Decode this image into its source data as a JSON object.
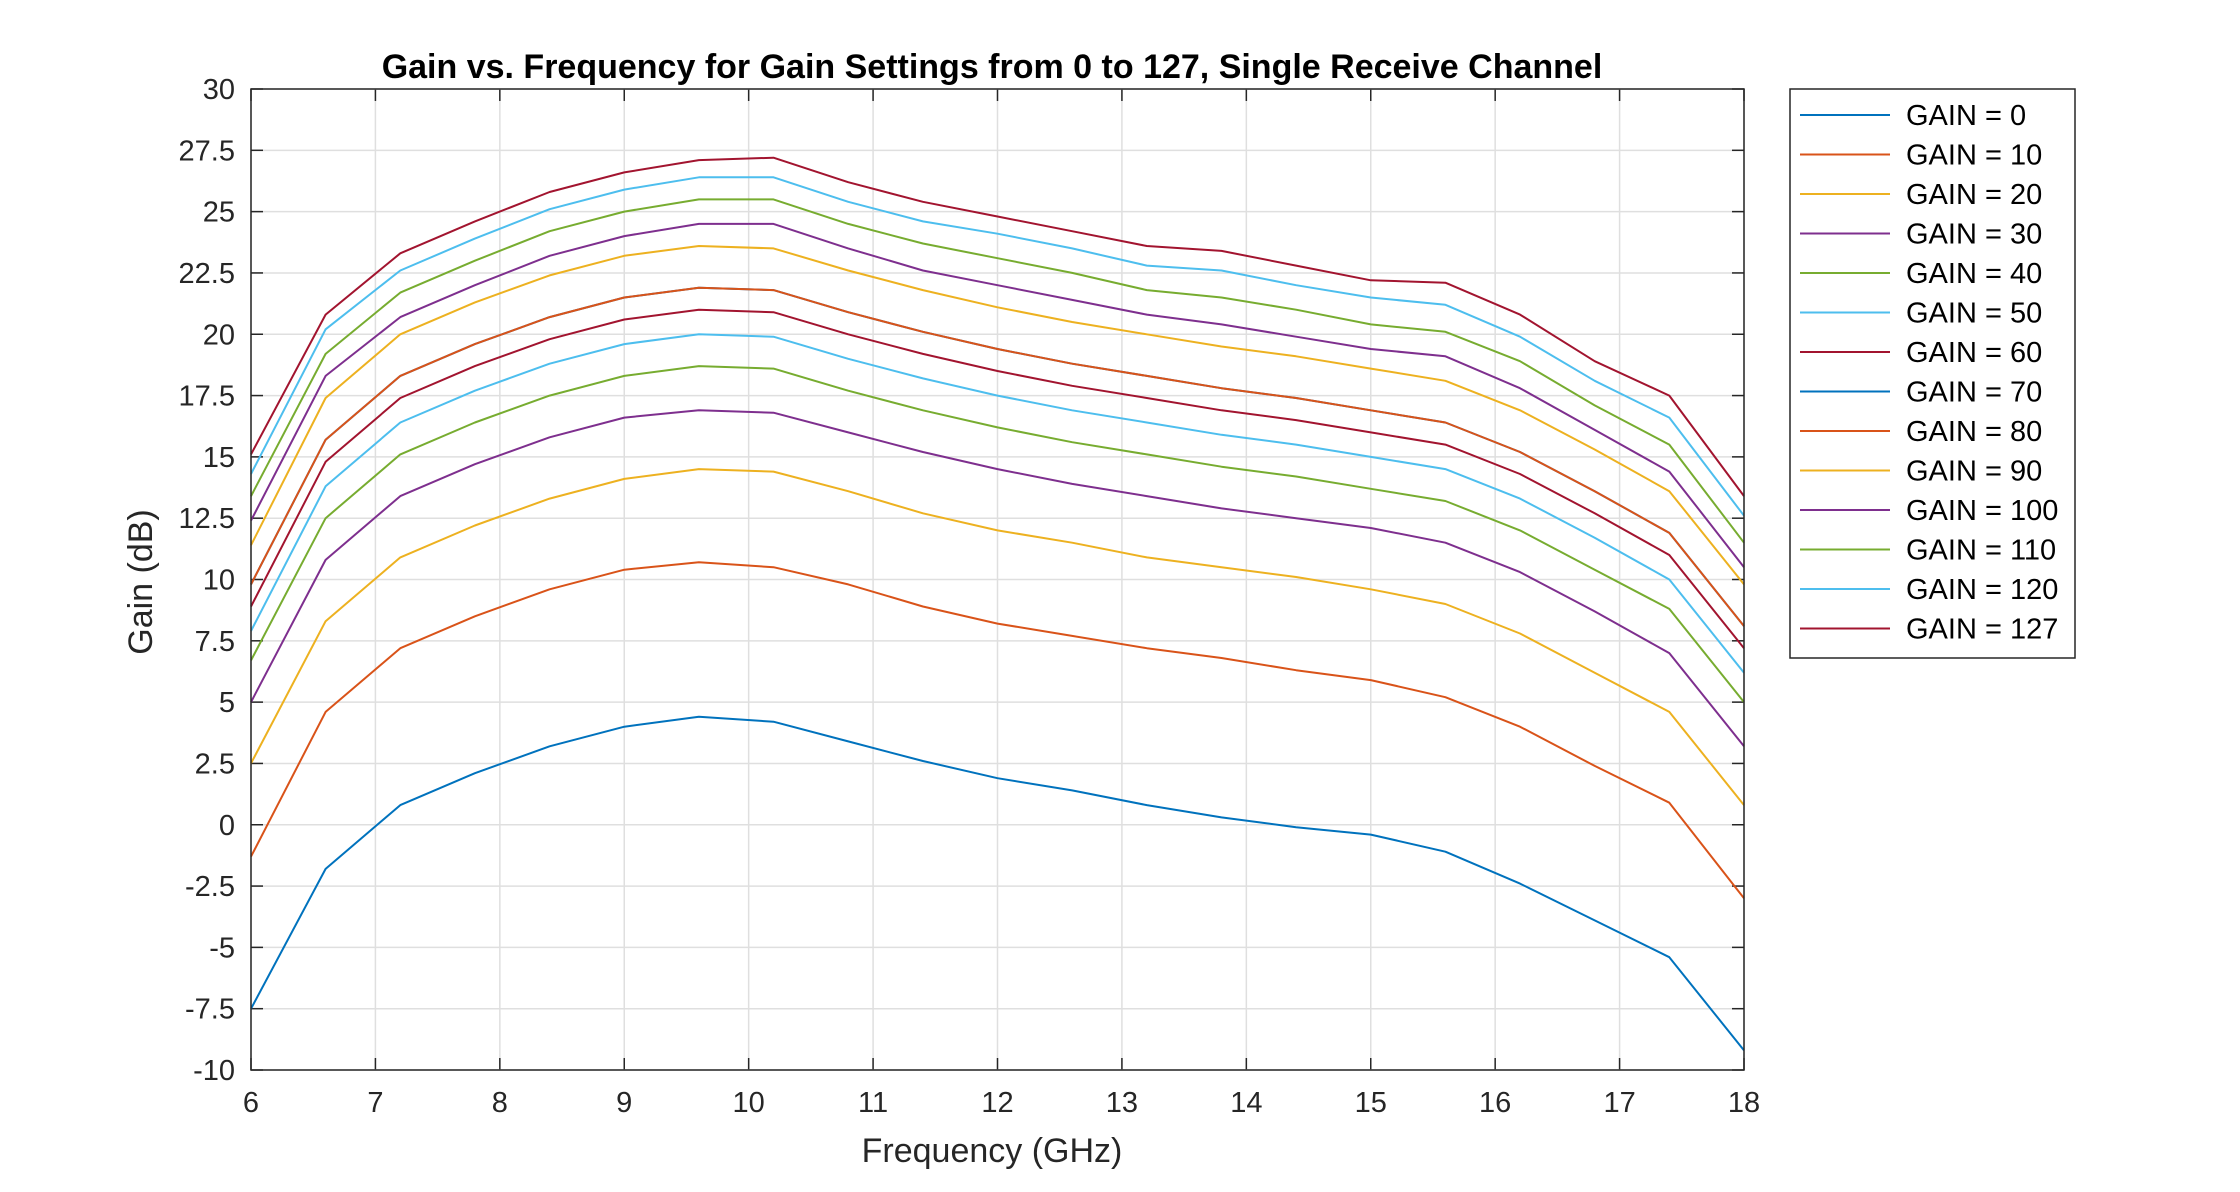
{
  "chart_data": {
    "type": "line",
    "title": "Gain vs. Frequency for Gain Settings from 0 to 127, Single Receive Channel",
    "xlabel": "Frequency (GHz)",
    "ylabel": "Gain (dB)",
    "xlim": [
      6,
      18
    ],
    "ylim": [
      -10,
      30
    ],
    "xticks": [
      "6",
      "7",
      "8",
      "9",
      "10",
      "11",
      "12",
      "13",
      "14",
      "15",
      "16",
      "17",
      "18"
    ],
    "yticks": [
      "-10",
      "-7.5",
      "-5",
      "-2.5",
      "0",
      "2.5",
      "5",
      "7.5",
      "10",
      "12.5",
      "15",
      "17.5",
      "20",
      "22.5",
      "25",
      "27.5",
      "30"
    ],
    "grid": true,
    "legend_position": "outside-top-right",
    "x": [
      6,
      6.6,
      7.2,
      7.8,
      8.4,
      9,
      9.6,
      10.2,
      10.8,
      11.4,
      12,
      12.6,
      13.2,
      13.8,
      14.4,
      15,
      15.6,
      16.2,
      16.8,
      17.4,
      18
    ],
    "series": [
      {
        "name": "GAIN = 0",
        "color": "#0072BD",
        "values": [
          -7.5,
          -1.8,
          0.8,
          2.1,
          3.2,
          4.0,
          4.4,
          4.2,
          3.4,
          2.6,
          1.9,
          1.4,
          0.8,
          0.3,
          -0.1,
          -0.4,
          -1.1,
          -2.4,
          -3.9,
          -5.4,
          -9.2
        ]
      },
      {
        "name": "GAIN = 10",
        "color": "#D95319",
        "values": [
          -1.3,
          4.6,
          7.2,
          8.5,
          9.6,
          10.4,
          10.7,
          10.5,
          9.8,
          8.9,
          8.2,
          7.7,
          7.2,
          6.8,
          6.3,
          5.9,
          5.2,
          4.0,
          2.4,
          0.9,
          -3.0
        ]
      },
      {
        "name": "GAIN = 20",
        "color": "#EDB120",
        "values": [
          2.5,
          8.3,
          10.9,
          12.2,
          13.3,
          14.1,
          14.5,
          14.4,
          13.6,
          12.7,
          12.0,
          11.5,
          10.9,
          10.5,
          10.1,
          9.6,
          9.0,
          7.8,
          6.2,
          4.6,
          0.8
        ]
      },
      {
        "name": "GAIN = 30",
        "color": "#7E2F8E",
        "values": [
          5.0,
          10.8,
          13.4,
          14.7,
          15.8,
          16.6,
          16.9,
          16.8,
          16.0,
          15.2,
          14.5,
          13.9,
          13.4,
          12.9,
          12.5,
          12.1,
          11.5,
          10.3,
          8.7,
          7.0,
          3.2
        ]
      },
      {
        "name": "GAIN = 40",
        "color": "#77AC30",
        "values": [
          6.7,
          12.5,
          15.1,
          16.4,
          17.5,
          18.3,
          18.7,
          18.6,
          17.7,
          16.9,
          16.2,
          15.6,
          15.1,
          14.6,
          14.2,
          13.7,
          13.2,
          12.0,
          10.4,
          8.8,
          5.0
        ]
      },
      {
        "name": "GAIN = 50",
        "color": "#4DBEEE",
        "values": [
          7.9,
          13.8,
          16.4,
          17.7,
          18.8,
          19.6,
          20.0,
          19.9,
          19.0,
          18.2,
          17.5,
          16.9,
          16.4,
          15.9,
          15.5,
          15.0,
          14.5,
          13.3,
          11.7,
          10.0,
          6.2
        ]
      },
      {
        "name": "GAIN = 60",
        "color": "#A2142F",
        "values": [
          8.9,
          14.8,
          17.4,
          18.7,
          19.8,
          20.6,
          21.0,
          20.9,
          20.0,
          19.2,
          18.5,
          17.9,
          17.4,
          16.9,
          16.5,
          16.0,
          15.5,
          14.3,
          12.7,
          11.0,
          7.2
        ]
      },
      {
        "name": "GAIN = 70",
        "color": "#0072BD",
        "values": [
          9.8,
          15.7,
          18.3,
          19.6,
          20.7,
          21.5,
          21.9,
          21.8,
          20.9,
          20.1,
          19.4,
          18.8,
          18.3,
          17.8,
          17.4,
          16.9,
          16.4,
          15.2,
          13.6,
          11.9,
          8.1
        ]
      },
      {
        "name": "GAIN = 80",
        "color": "#D95319",
        "values": [
          9.8,
          15.7,
          18.3,
          19.6,
          20.7,
          21.5,
          21.9,
          21.8,
          20.9,
          20.1,
          19.4,
          18.8,
          18.3,
          17.8,
          17.4,
          16.9,
          16.4,
          15.2,
          13.6,
          11.9,
          8.1
        ]
      },
      {
        "name": "GAIN = 90",
        "color": "#EDB120",
        "values": [
          11.4,
          17.4,
          20.0,
          21.3,
          22.4,
          23.2,
          23.6,
          23.5,
          22.6,
          21.8,
          21.1,
          20.5,
          20.0,
          19.5,
          19.1,
          18.6,
          18.1,
          16.9,
          15.3,
          13.6,
          9.8
        ]
      },
      {
        "name": "GAIN = 100",
        "color": "#7E2F8E",
        "values": [
          12.4,
          18.3,
          20.7,
          22.0,
          23.2,
          24.0,
          24.5,
          24.5,
          23.5,
          22.6,
          22.0,
          21.4,
          20.8,
          20.4,
          19.9,
          19.4,
          19.1,
          17.8,
          16.1,
          14.4,
          10.5
        ]
      },
      {
        "name": "GAIN = 110",
        "color": "#77AC30",
        "values": [
          13.4,
          19.2,
          21.7,
          23.0,
          24.2,
          25.0,
          25.5,
          25.5,
          24.5,
          23.7,
          23.1,
          22.5,
          21.8,
          21.5,
          21.0,
          20.4,
          20.1,
          18.9,
          17.1,
          15.5,
          11.5
        ]
      },
      {
        "name": "GAIN = 120",
        "color": "#4DBEEE",
        "values": [
          14.3,
          20.2,
          22.6,
          23.9,
          25.1,
          25.9,
          26.4,
          26.4,
          25.4,
          24.6,
          24.1,
          23.5,
          22.8,
          22.6,
          22.0,
          21.5,
          21.2,
          19.9,
          18.1,
          16.6,
          12.6
        ]
      },
      {
        "name": "GAIN = 127",
        "color": "#A2142F",
        "values": [
          15.1,
          20.8,
          23.3,
          24.6,
          25.8,
          26.6,
          27.1,
          27.2,
          26.2,
          25.4,
          24.8,
          24.2,
          23.6,
          23.4,
          22.8,
          22.2,
          22.1,
          20.8,
          18.9,
          17.5,
          13.4
        ]
      }
    ]
  }
}
